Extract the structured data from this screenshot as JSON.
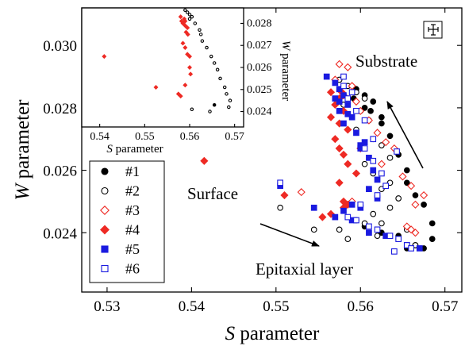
{
  "chart_data": [
    {
      "type": "scatter",
      "xlabel_var": "S",
      "xlabel_rest": " parameter",
      "ylabel_var": "W",
      "ylabel_rest": " parameter",
      "xlim": [
        0.527,
        0.572
      ],
      "ylim": [
        0.0221,
        0.0312
      ],
      "xticks": [
        "0.53",
        "0.54",
        "0.55",
        "0.56",
        "0.57"
      ],
      "xtick_values": [
        0.53,
        0.54,
        0.55,
        0.56,
        0.57
      ],
      "yticks": [
        "0.024",
        "0.026",
        "0.028",
        "0.030"
      ],
      "ytick_values": [
        0.024,
        0.026,
        0.028,
        0.03
      ],
      "legend_position": "left",
      "annotations": {
        "substrate": "Substrate",
        "surface": "Surface",
        "epitaxial": "Epitaxial layer"
      },
      "series": [
        {
          "name": "#1",
          "marker": "circle",
          "filled": true,
          "color": "#000000",
          "points": [
            [
              0.5595,
              0.0286
            ],
            [
              0.5605,
              0.0284
            ],
            [
              0.5615,
              0.0282
            ],
            [
              0.5605,
              0.028
            ],
            [
              0.5625,
              0.0277
            ],
            [
              0.5625,
              0.0275
            ],
            [
              0.5635,
              0.0271
            ],
            [
              0.5645,
              0.0265
            ],
            [
              0.5655,
              0.026
            ],
            [
              0.5655,
              0.0256
            ],
            [
              0.5665,
              0.0252
            ],
            [
              0.5675,
              0.0249
            ],
            [
              0.5685,
              0.0243
            ],
            [
              0.5685,
              0.0238
            ],
            [
              0.5665,
              0.0236
            ],
            [
              0.5655,
              0.0235
            ],
            [
              0.5605,
              0.0242
            ],
            [
              0.5625,
              0.024
            ],
            [
              0.5645,
              0.0239
            ],
            [
              0.5675,
              0.0235
            ],
            [
              0.5592,
              0.0283
            ],
            [
              0.5612,
              0.0279
            ]
          ]
        },
        {
          "name": "#2",
          "marker": "circle",
          "filled": false,
          "color": "#000000",
          "points": [
            [
              0.5575,
              0.0289
            ],
            [
              0.5585,
              0.0287
            ],
            [
              0.5595,
              0.0285
            ],
            [
              0.5605,
              0.0283
            ],
            [
              0.558,
              0.0281
            ],
            [
              0.56,
              0.0279
            ],
            [
              0.561,
              0.0276
            ],
            [
              0.5595,
              0.0273
            ],
            [
              0.5615,
              0.027
            ],
            [
              0.5625,
              0.0268
            ],
            [
              0.5635,
              0.0264
            ],
            [
              0.5605,
              0.0262
            ],
            [
              0.5615,
              0.0259
            ],
            [
              0.5635,
              0.0256
            ],
            [
              0.5625,
              0.0254
            ],
            [
              0.5645,
              0.0251
            ],
            [
              0.5635,
              0.0248
            ],
            [
              0.5615,
              0.0246
            ],
            [
              0.5595,
              0.0244
            ],
            [
              0.5625,
              0.0243
            ],
            [
              0.5655,
              0.0241
            ],
            [
              0.5645,
              0.0238
            ],
            [
              0.5665,
              0.0236
            ],
            [
              0.5505,
              0.0248
            ],
            [
              0.5545,
              0.0241
            ],
            [
              0.5575,
              0.0241
            ],
            [
              0.5585,
              0.0238
            ],
            [
              0.562,
              0.0239
            ],
            [
              0.5605,
              0.0243
            ]
          ]
        },
        {
          "name": "#3",
          "marker": "diamond",
          "filled": false,
          "color": "#ee2a24",
          "points": [
            [
              0.5575,
              0.0294
            ],
            [
              0.5585,
              0.0293
            ],
            [
              0.557,
              0.0289
            ],
            [
              0.559,
              0.0287
            ],
            [
              0.558,
              0.0284
            ],
            [
              0.5595,
              0.0282
            ],
            [
              0.56,
              0.0279
            ],
            [
              0.561,
              0.0276
            ],
            [
              0.562,
              0.0272
            ],
            [
              0.563,
              0.0269
            ],
            [
              0.564,
              0.0267
            ],
            [
              0.5625,
              0.0262
            ],
            [
              0.565,
              0.0258
            ],
            [
              0.566,
              0.0255
            ],
            [
              0.5675,
              0.0252
            ],
            [
              0.5665,
              0.0249
            ],
            [
              0.566,
              0.0241
            ],
            [
              0.5665,
              0.024
            ],
            [
              0.5655,
              0.0242
            ],
            [
              0.553,
              0.0253
            ],
            [
              0.559,
              0.025
            ]
          ]
        },
        {
          "name": "#4",
          "marker": "diamond",
          "filled": true,
          "color": "#ee2a24",
          "points": [
            [
              0.5565,
              0.0285
            ],
            [
              0.5575,
              0.0283
            ],
            [
              0.557,
              0.0281
            ],
            [
              0.558,
              0.0279
            ],
            [
              0.5565,
              0.0277
            ],
            [
              0.5575,
              0.0275
            ],
            [
              0.5585,
              0.0273
            ],
            [
              0.557,
              0.027
            ],
            [
              0.5575,
              0.0267
            ],
            [
              0.558,
              0.0265
            ],
            [
              0.5585,
              0.0262
            ],
            [
              0.5595,
              0.0259
            ],
            [
              0.5575,
              0.0256
            ],
            [
              0.558,
              0.025
            ],
            [
              0.5585,
              0.0249
            ],
            [
              0.5565,
              0.0246
            ],
            [
              0.5555,
              0.0245
            ],
            [
              0.5415,
              0.0263
            ],
            [
              0.551,
              0.0252
            ],
            [
              0.56,
              0.0267
            ],
            [
              0.5578,
              0.0285
            ],
            [
              0.558,
              0.0248
            ]
          ]
        },
        {
          "name": "#5",
          "marker": "square",
          "filled": true,
          "color": "#1a1ae0",
          "points": [
            [
              0.556,
              0.029
            ],
            [
              0.557,
              0.0288
            ],
            [
              0.5575,
              0.0286
            ],
            [
              0.558,
              0.0284
            ],
            [
              0.557,
              0.0283
            ],
            [
              0.5585,
              0.0281
            ],
            [
              0.5575,
              0.0279
            ],
            [
              0.559,
              0.0277
            ],
            [
              0.558,
              0.0275
            ],
            [
              0.5595,
              0.0272
            ],
            [
              0.5605,
              0.0269
            ],
            [
              0.56,
              0.0267
            ],
            [
              0.561,
              0.0264
            ],
            [
              0.5615,
              0.026
            ],
            [
              0.562,
              0.0257
            ],
            [
              0.561,
              0.0254
            ],
            [
              0.562,
              0.0251
            ],
            [
              0.56,
              0.0248
            ],
            [
              0.558,
              0.0247
            ],
            [
              0.557,
              0.0245
            ],
            [
              0.559,
              0.0244
            ],
            [
              0.561,
              0.024
            ],
            [
              0.563,
              0.0239
            ],
            [
              0.5655,
              0.0236
            ],
            [
              0.567,
              0.0235
            ],
            [
              0.5505,
              0.0255
            ],
            [
              0.5545,
              0.0248
            ],
            [
              0.559,
              0.0249
            ],
            [
              0.5575,
              0.0282
            ],
            [
              0.5585,
              0.0278
            ],
            [
              0.56,
              0.0268
            ]
          ]
        },
        {
          "name": "#6",
          "marker": "square",
          "filled": false,
          "color": "#1a1ae0",
          "points": [
            [
              0.558,
              0.0287
            ],
            [
              0.559,
              0.0285
            ],
            [
              0.5585,
              0.0283
            ],
            [
              0.5595,
              0.0279
            ],
            [
              0.5605,
              0.0276
            ],
            [
              0.5615,
              0.027
            ],
            [
              0.5605,
              0.0267
            ],
            [
              0.5615,
              0.0263
            ],
            [
              0.5625,
              0.0259
            ],
            [
              0.563,
              0.0255
            ],
            [
              0.562,
              0.0252
            ],
            [
              0.56,
              0.0249
            ],
            [
              0.5585,
              0.0245
            ],
            [
              0.5595,
              0.0244
            ],
            [
              0.561,
              0.0242
            ],
            [
              0.562,
              0.0241
            ],
            [
              0.5635,
              0.0239
            ],
            [
              0.5645,
              0.0238
            ],
            [
              0.5655,
              0.0236
            ],
            [
              0.566,
              0.0235
            ],
            [
              0.564,
              0.0234
            ],
            [
              0.5643,
              0.0266
            ],
            [
              0.5505,
              0.0256
            ],
            [
              0.558,
              0.029
            ]
          ]
        }
      ]
    },
    {
      "type": "scatter",
      "name": "inset",
      "xlabel_var": "S",
      "xlabel_rest": " parameter",
      "ylabel_var": "W",
      "ylabel_rest": " parameter",
      "xlim": [
        0.536,
        0.572
      ],
      "ylim": [
        0.0233,
        0.0287
      ],
      "xticks": [
        "0.54",
        "0.55",
        "0.56",
        "0.57"
      ],
      "xtick_values": [
        0.54,
        0.55,
        0.56,
        0.57
      ],
      "yticks": [
        "0.024",
        "0.025",
        "0.026",
        "0.027",
        "0.028"
      ],
      "ytick_values": [
        0.024,
        0.025,
        0.026,
        0.027,
        0.028
      ],
      "series": [
        {
          "name": "",
          "marker": "circle",
          "filled": false,
          "color": "#000000",
          "points": [
            [
              0.559,
              0.0286
            ],
            [
              0.5595,
              0.0285
            ],
            [
              0.56,
              0.0284
            ],
            [
              0.5605,
              0.0283
            ],
            [
              0.56,
              0.0282
            ],
            [
              0.5612,
              0.028
            ],
            [
              0.5622,
              0.0277
            ],
            [
              0.5625,
              0.0275
            ],
            [
              0.5628,
              0.0272
            ],
            [
              0.5638,
              0.0269
            ],
            [
              0.5648,
              0.0265
            ],
            [
              0.5655,
              0.0262
            ],
            [
              0.5662,
              0.0259
            ],
            [
              0.5668,
              0.0255
            ],
            [
              0.5678,
              0.0251
            ],
            [
              0.5682,
              0.0248
            ],
            [
              0.569,
              0.0245
            ],
            [
              0.5687,
              0.0242
            ],
            [
              0.5605,
              0.0241
            ],
            [
              0.5645,
              0.024
            ]
          ]
        },
        {
          "name": "",
          "marker": "diamond",
          "filled": true,
          "color": "#ee2a24",
          "points": [
            [
              0.558,
              0.0283
            ],
            [
              0.5588,
              0.0282
            ],
            [
              0.5582,
              0.0281
            ],
            [
              0.559,
              0.0281
            ],
            [
              0.5585,
              0.028
            ],
            [
              0.559,
              0.0279
            ],
            [
              0.5595,
              0.0278
            ],
            [
              0.5592,
              0.0276
            ],
            [
              0.5596,
              0.0275
            ],
            [
              0.5585,
              0.0271
            ],
            [
              0.559,
              0.0269
            ],
            [
              0.5595,
              0.0266
            ],
            [
              0.56,
              0.0265
            ],
            [
              0.56,
              0.026
            ],
            [
              0.5602,
              0.0257
            ],
            [
              0.559,
              0.0252
            ],
            [
              0.558,
              0.0247
            ],
            [
              0.541,
              0.0265
            ],
            [
              0.5525,
              0.0251
            ],
            [
              0.5575,
              0.0248
            ]
          ]
        },
        {
          "name": "",
          "marker": "circle",
          "filled": true,
          "color": "#000000",
          "points": [
            [
              0.5655,
              0.0243
            ]
          ]
        }
      ]
    }
  ]
}
